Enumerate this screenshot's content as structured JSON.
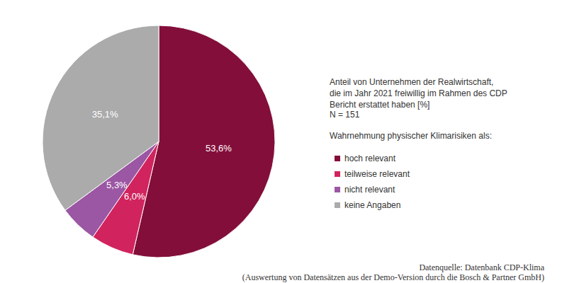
{
  "chart_data": {
    "type": "pie",
    "title": "Anteil von Unternehmen der Realwirtschaft,\ndie im Jahr 2021 freiwillig im Rahmen des CDP\nBericht erstattet haben [%]",
    "subtitle": "N = 151",
    "legend_title": "Wahrnehmung physischer Klimarisiken als:",
    "categories": [
      "hoch relevant",
      "teilweise relevant",
      "nicht relevant",
      "keine Angaben"
    ],
    "values": [
      53.6,
      6.0,
      5.3,
      35.1
    ],
    "value_labels": [
      "53,6%",
      "6,0%",
      "5,3%",
      "35,1%"
    ],
    "colors": [
      "#830e3a",
      "#d1245e",
      "#9b57a3",
      "#ababab"
    ],
    "data_labels": true,
    "legend": "right",
    "source": "Datenquelle: Datenbank CDP-Klima\n(Auswertung von Datensätzen aus der Demo-Version durch die Bosch & Partner GmbH)"
  }
}
